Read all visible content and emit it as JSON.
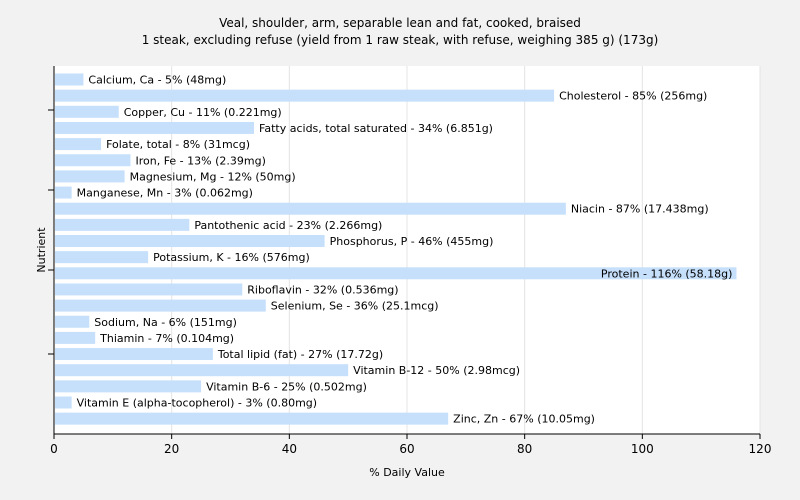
{
  "chart_data": {
    "type": "bar",
    "orientation": "horizontal",
    "title": "Veal, shoulder, arm, separable lean and fat, cooked, braised",
    "subtitle": "1 steak, excluding refuse (yield from 1 raw steak, with refuse, weighing 385 g) (173g)",
    "xlabel": "% Daily Value",
    "ylabel": "Nutrient",
    "xlim": [
      0,
      120
    ],
    "xticks": [
      0,
      20,
      40,
      60,
      80,
      100,
      120
    ],
    "grid": true,
    "bar_color": "#c6e0fb",
    "categories": [
      "Calcium, Ca",
      "Cholesterol",
      "Copper, Cu",
      "Fatty acids, total saturated",
      "Folate, total",
      "Iron, Fe",
      "Magnesium, Mg",
      "Manganese, Mn",
      "Niacin",
      "Pantothenic acid",
      "Phosphorus, P",
      "Potassium, K",
      "Protein",
      "Riboflavin",
      "Selenium, Se",
      "Sodium, Na",
      "Thiamin",
      "Total lipid (fat)",
      "Vitamin B-12",
      "Vitamin B-6",
      "Vitamin E (alpha-tocopherol)",
      "Zinc, Zn"
    ],
    "values": [
      5,
      85,
      11,
      34,
      8,
      13,
      12,
      3,
      87,
      23,
      46,
      16,
      116,
      32,
      36,
      6,
      7,
      27,
      50,
      25,
      3,
      67
    ],
    "labels": [
      "Calcium, Ca - 5% (48mg)",
      "Cholesterol - 85% (256mg)",
      "Copper, Cu - 11% (0.221mg)",
      "Fatty acids, total saturated - 34% (6.851g)",
      "Folate, total - 8% (31mcg)",
      "Iron, Fe - 13% (2.39mg)",
      "Magnesium, Mg - 12% (50mg)",
      "Manganese, Mn - 3% (0.062mg)",
      "Niacin - 87% (17.438mg)",
      "Pantothenic acid - 23% (2.266mg)",
      "Phosphorus, P - 46% (455mg)",
      "Potassium, K - 16% (576mg)",
      "Protein - 116% (58.18g)",
      "Riboflavin - 32% (0.536mg)",
      "Selenium, Se - 36% (25.1mcg)",
      "Sodium, Na - 6% (151mg)",
      "Thiamin - 7% (0.104mg)",
      "Total lipid (fat) - 27% (17.72g)",
      "Vitamin B-12 - 50% (2.98mcg)",
      "Vitamin B-6 - 25% (0.502mg)",
      "Vitamin E (alpha-tocopherol) - 3% (0.80mg)",
      "Zinc, Zn - 67% (10.05mg)"
    ]
  }
}
